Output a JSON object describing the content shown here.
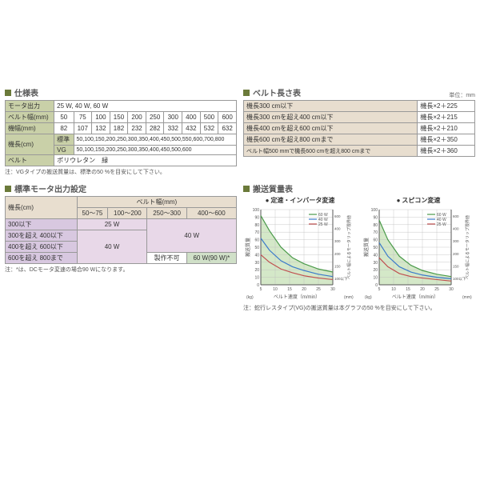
{
  "spec": {
    "title": "仕様表",
    "rows": [
      {
        "label": "モータ出力",
        "value": "25 W, 40 W, 60 W"
      },
      {
        "label": "ベルト幅(mm)",
        "cells": [
          "50",
          "75",
          "100",
          "150",
          "200",
          "250",
          "300",
          "400",
          "500",
          "600"
        ]
      },
      {
        "label": "機幅(mm)",
        "cells": [
          "82",
          "107",
          "132",
          "182",
          "232",
          "282",
          "332",
          "432",
          "532",
          "632"
        ]
      },
      {
        "label": "機長(cm)",
        "sub1": "標準",
        "sub1val": "50,100,150,200,250,300,350,400,450,500,550,600,700,800",
        "sub2": "VG",
        "sub2val": "50,100,150,200,250,300,350,400,450,500,600"
      },
      {
        "label": "ベルト",
        "value": "ポリウレタン　緑"
      }
    ],
    "note": "注：VGタイプの搬送質量は、標準の50 %を目安にして下さい。"
  },
  "belt_length": {
    "title": "ベルト長さ表",
    "unit": "単位：mm",
    "rows": [
      [
        "機長300 cm以下",
        "機長×2＋225"
      ],
      [
        "機長300 cmを超え400 cm以下",
        "機長×2＋215"
      ],
      [
        "機長400 cmを超え600 cm以下",
        "機長×2＋210"
      ],
      [
        "機長600 cmを超え800 cmまで",
        "機長×2＋350"
      ],
      [
        "ベルト幅500 mmで機長600 cmを超え800 cmまで",
        "機長×2＋360"
      ]
    ]
  },
  "motor_setting": {
    "title": "標準モータ出力設定",
    "col_header": "ベルト幅(mm)",
    "row_header": "機長(cm)",
    "cols": [
      "50～75",
      "100～200",
      "250～300",
      "400～600"
    ],
    "rows": [
      "300以下",
      "300を超え 400以下",
      "400を超え 600以下",
      "600を超え 800まで"
    ],
    "v25": "25 W",
    "v40": "40 W",
    "v60": "60 W(90 W)*",
    "na": "製作不可",
    "note": "注：*は、DCモータ変速の場合90 Wになります。"
  },
  "transport": {
    "title": "搬送質量表",
    "chart1_title": "定速・インバータ変速",
    "chart2_title": "スピコン変速",
    "xlabel": "ベルト速度（m/min）",
    "ylabel": "搬送質量",
    "yunit": "(kg)",
    "right_label": "ベルト幅によるモータリップ限界値",
    "right_unit": "(mm)",
    "legend": [
      "60 W",
      "40 W",
      "25 W"
    ],
    "legend_right": [
      "600",
      "400",
      "300",
      "200",
      "150",
      "100以下"
    ],
    "xticks": [
      5,
      10,
      15,
      20,
      25,
      30
    ],
    "yticks": [
      0,
      10,
      20,
      30,
      40,
      50,
      60,
      70,
      80,
      90,
      100
    ],
    "colors": {
      "s60": "#4a9a4a",
      "s40": "#3a7aca",
      "s25": "#c05050",
      "grid": "#bbb",
      "axis": "#555",
      "fill": "#d4e8c8"
    },
    "chart1": {
      "s60": [
        [
          5,
          92
        ],
        [
          8,
          72
        ],
        [
          12,
          50
        ],
        [
          16,
          36
        ],
        [
          20,
          28
        ],
        [
          25,
          21
        ],
        [
          30,
          17
        ]
      ],
      "s40": [
        [
          5,
          62
        ],
        [
          8,
          46
        ],
        [
          12,
          32
        ],
        [
          16,
          24
        ],
        [
          20,
          19
        ],
        [
          25,
          14
        ],
        [
          30,
          11
        ]
      ],
      "s25": [
        [
          5,
          40
        ],
        [
          8,
          30
        ],
        [
          12,
          21
        ],
        [
          16,
          16
        ],
        [
          20,
          12
        ],
        [
          25,
          9
        ],
        [
          30,
          7
        ]
      ]
    },
    "chart2": {
      "s60": [
        [
          5,
          86
        ],
        [
          8,
          60
        ],
        [
          12,
          38
        ],
        [
          16,
          26
        ],
        [
          20,
          19
        ],
        [
          25,
          14
        ],
        [
          30,
          11
        ]
      ],
      "s40": [
        [
          5,
          56
        ],
        [
          8,
          38
        ],
        [
          12,
          24
        ],
        [
          16,
          17
        ],
        [
          20,
          13
        ],
        [
          25,
          10
        ],
        [
          30,
          8
        ]
      ],
      "s25": [
        [
          5,
          36
        ],
        [
          8,
          24
        ],
        [
          12,
          15
        ],
        [
          16,
          11
        ],
        [
          20,
          9
        ],
        [
          25,
          7
        ],
        [
          30,
          5
        ]
      ]
    },
    "note": "注：蛇行レスタイプ(VG)の搬送質量は本グラフの50 %を目安にして下さい。"
  }
}
